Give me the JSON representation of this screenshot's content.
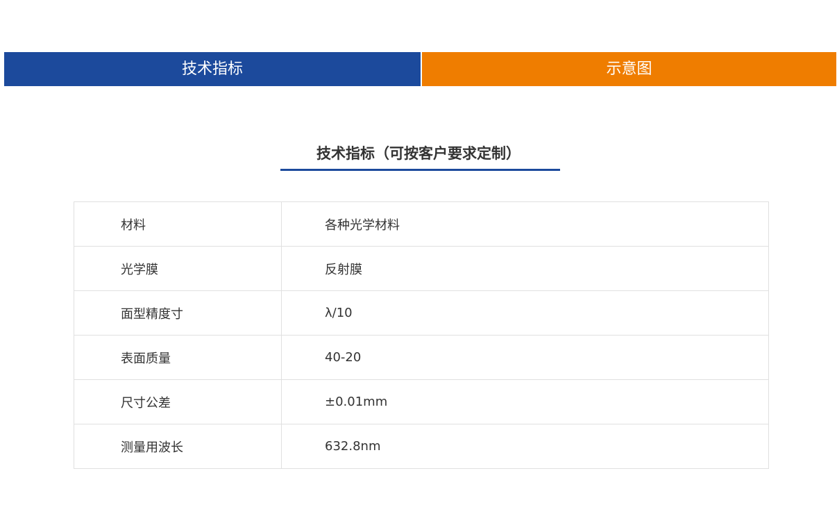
{
  "tabs": [
    {
      "label": "技术指标",
      "color": "#1c4a9c"
    },
    {
      "label": "示意图",
      "color": "#ef7d00"
    }
  ],
  "section_title": "技术指标（可按客户要求定制）",
  "specs": [
    {
      "key": "材料",
      "value": "各种光学材料"
    },
    {
      "key": "光学膜",
      "value": "反射膜"
    },
    {
      "key": "面型精度寸",
      "value": "λ/10"
    },
    {
      "key": "表面质量",
      "value": "40-20"
    },
    {
      "key": "尺寸公差",
      "value": "±0.01mm"
    },
    {
      "key": "测量用波长",
      "value": "632.8nm"
    }
  ]
}
